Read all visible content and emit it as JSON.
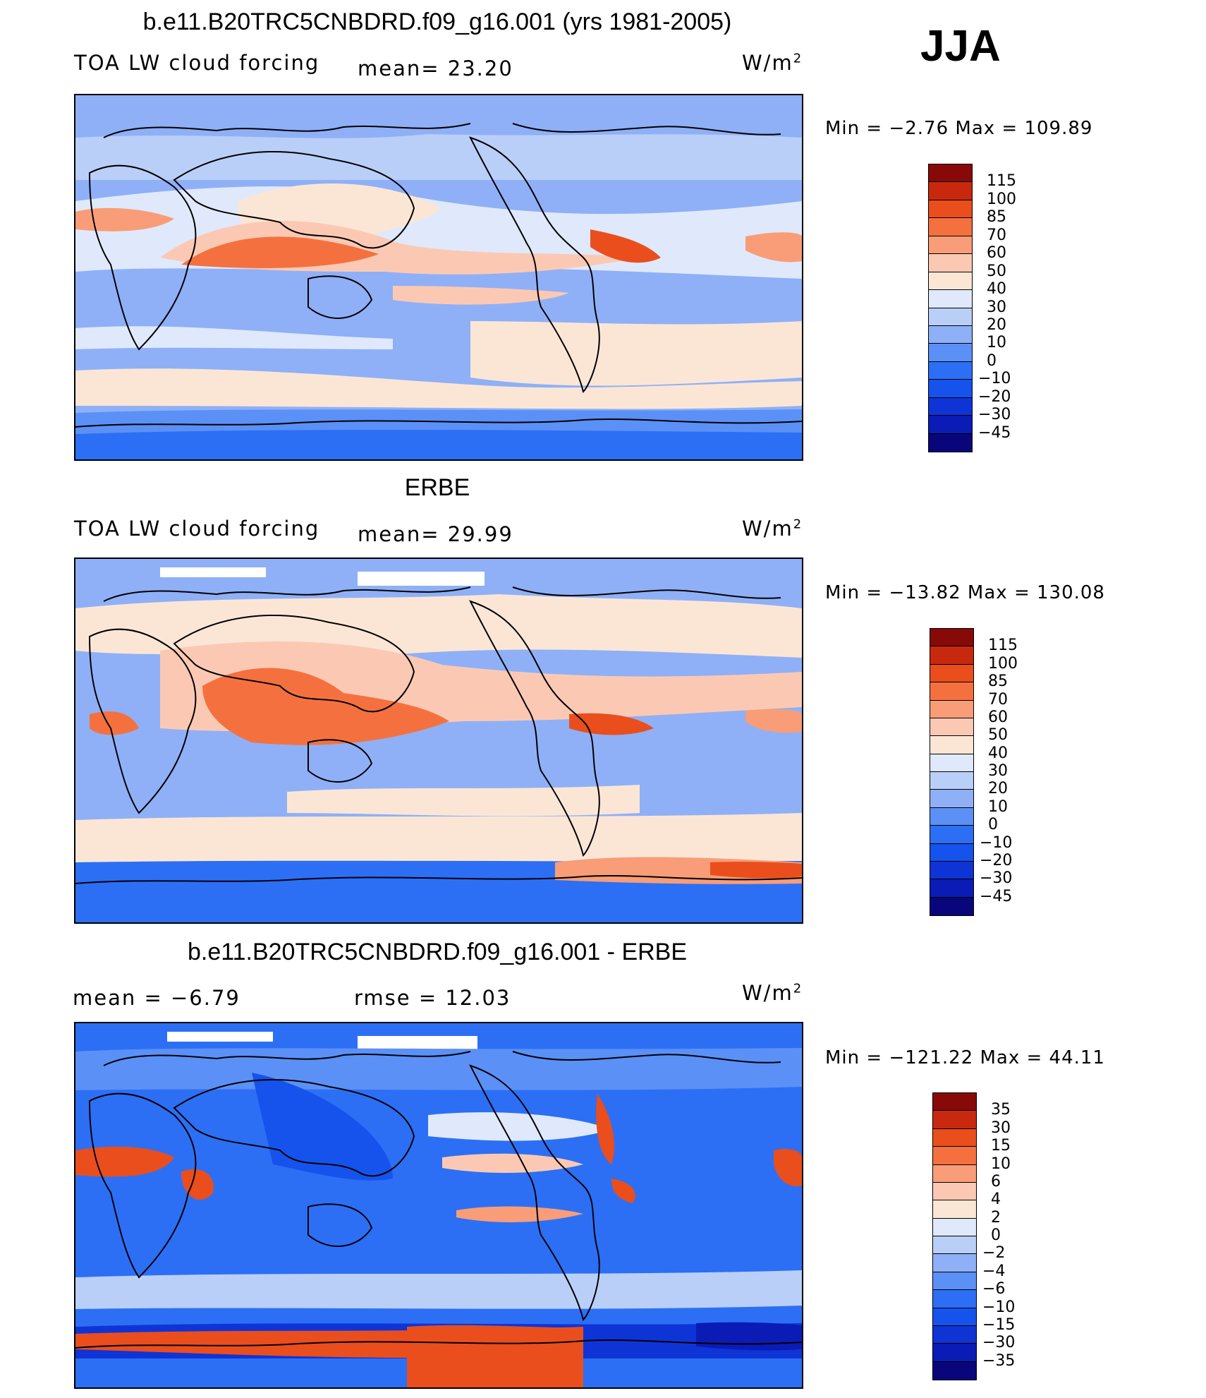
{
  "season": "JJA",
  "colorscales": {
    "abs": [
      "#08067a",
      "#0b1bb6",
      "#0f34d6",
      "#1553ec",
      "#2c6ff5",
      "#5b90f7",
      "#8fb0f7",
      "#b9cff8",
      "#dfe9fb",
      "#fbe6d6",
      "#fbc9b3",
      "#f89d78",
      "#f4713f",
      "#ea4e1d",
      "#c8290e",
      "#870a08"
    ],
    "diff": [
      "#08067a",
      "#0b1bb6",
      "#0f34d6",
      "#1553ec",
      "#2c6ff5",
      "#5b90f7",
      "#8fb0f7",
      "#b9cff8",
      "#dfe9fb",
      "#fbe6d6",
      "#fbc9b3",
      "#f89d78",
      "#f4713f",
      "#ea4e1d",
      "#c8290e",
      "#870a08"
    ]
  },
  "panels": [
    {
      "title": "b.e11.B20TRC5CNBDRD.f09_g16.001 (yrs 1981-2005)",
      "left_label": "TOA LW cloud forcing",
      "mid_label": "mean=   23.20",
      "units": "W/m",
      "units_sup": "2",
      "minmax": "Min =   −2.76  Max  =  109.89",
      "levels": [
        "115",
        "100",
        "85",
        "70",
        "60",
        "50",
        "40",
        "30",
        "20",
        "10",
        "0",
        "−10",
        "−20",
        "−30",
        "−45"
      ],
      "scale": "abs"
    },
    {
      "title": "ERBE",
      "left_label": "TOA LW cloud forcing",
      "mid_label": "mean=   29.99",
      "units": "W/m",
      "units_sup": "2",
      "minmax": "Min  =  −13.82  Max  =  130.08",
      "levels": [
        "115",
        "100",
        "85",
        "70",
        "60",
        "50",
        "40",
        "30",
        "20",
        "10",
        "0",
        "−10",
        "−20",
        "−30",
        "−45"
      ],
      "scale": "abs"
    },
    {
      "title": "b.e11.B20TRC5CNBDRD.f09_g16.001 - ERBE",
      "left_label": "mean =   −6.79",
      "mid_label": "rmse =   12.03",
      "units": "W/m",
      "units_sup": "2",
      "minmax": "Min  =  −121.22  Max  =   44.11",
      "levels": [
        "35",
        "30",
        "15",
        "10",
        "6",
        "4",
        "2",
        "0",
        "−2",
        "−4",
        "−6",
        "−10",
        "−15",
        "−30",
        "−35"
      ],
      "scale": "diff"
    }
  ]
}
